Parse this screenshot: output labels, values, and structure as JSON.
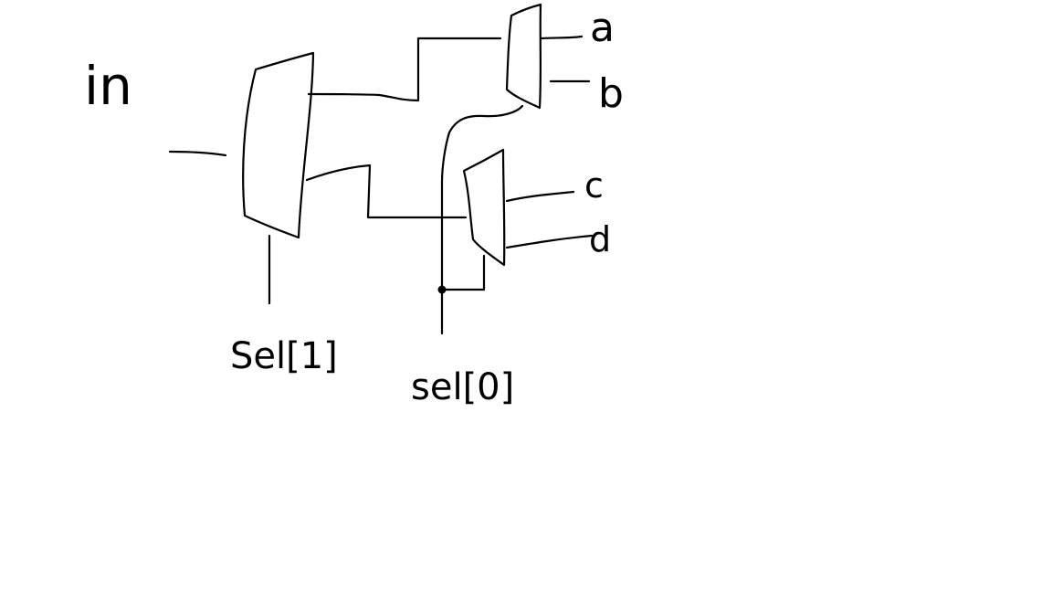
{
  "diagram": {
    "input_label": "in",
    "output_labels": {
      "a": "a",
      "b": "b",
      "c": "c",
      "d": "d"
    },
    "select_labels": {
      "sel1": "Sel[1]",
      "sel0": "sel[0]"
    },
    "colors": {
      "background": "#ffffff",
      "ink": "#000000"
    }
  }
}
